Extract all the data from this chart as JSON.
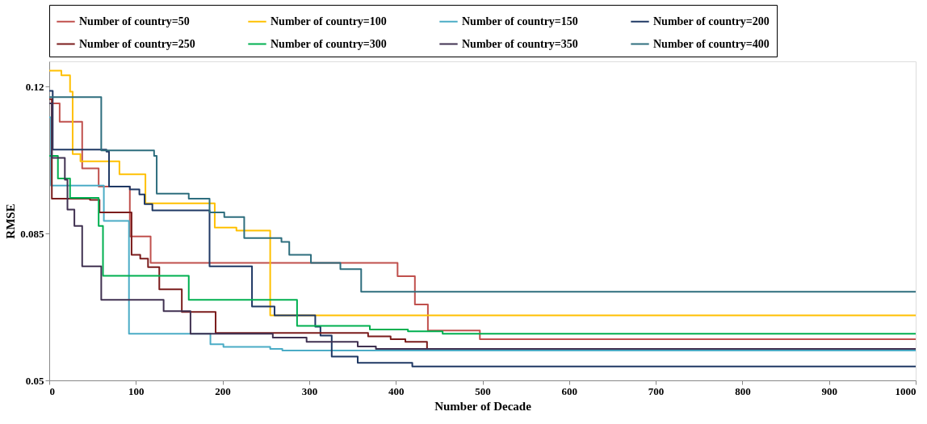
{
  "chart_data": {
    "type": "step",
    "xlabel": "Number of Decade",
    "ylabel": "RMSE",
    "xlim": [
      0,
      1000
    ],
    "xticks": [
      0,
      100,
      200,
      300,
      400,
      500,
      600,
      700,
      800,
      900,
      1000
    ],
    "ylim": [
      0.05,
      0.126
    ],
    "yticks": [
      0.05,
      0.085,
      0.12
    ],
    "grid": false,
    "legend": "top",
    "series": [
      {
        "name": "Number of country=50",
        "color": "#c0504d",
        "x": [
          0,
          12,
          38,
          57,
          93,
          117,
          402,
          422,
          437,
          497,
          1000
        ],
        "values": [
          0.116,
          0.1116,
          0.1005,
          0.0962,
          0.0843,
          0.078,
          0.0748,
          0.0681,
          0.0619,
          0.0598,
          0.0598
        ]
      },
      {
        "name": "Number of country=100",
        "color": "#ffc000",
        "x": [
          0,
          14,
          24,
          27,
          36,
          81,
          111,
          191,
          216,
          255,
          1000
        ],
        "values": [
          0.1238,
          0.1227,
          0.1188,
          0.1039,
          0.1022,
          0.0991,
          0.0922,
          0.0864,
          0.0857,
          0.0655,
          0.0655
        ]
      },
      {
        "name": "Number of country=150",
        "color": "#4bacc6",
        "x": [
          0,
          2,
          63,
          92,
          186,
          201,
          255,
          269,
          1000
        ],
        "values": [
          0.1127,
          0.0964,
          0.088,
          0.0611,
          0.0586,
          0.058,
          0.0575,
          0.0571,
          0.0571
        ]
      },
      {
        "name": "Number of country=200",
        "color": "#1f3864",
        "x": [
          0,
          4,
          66,
          69,
          93,
          104,
          110,
          119,
          185,
          234,
          260,
          307,
          313,
          326,
          356,
          419,
          1000
        ],
        "values": [
          0.119,
          0.105,
          0.1045,
          0.0962,
          0.0955,
          0.0943,
          0.092,
          0.0905,
          0.0772,
          0.0676,
          0.0655,
          0.0628,
          0.0607,
          0.0557,
          0.0542,
          0.0533,
          0.0533
        ]
      },
      {
        "name": "Number of country=250",
        "color": "#7b1c1c",
        "x": [
          0,
          3,
          47,
          58,
          95,
          105,
          114,
          127,
          153,
          192,
          368,
          394,
          411,
          436,
          1000
        ],
        "values": [
          0.117,
          0.0933,
          0.093,
          0.09,
          0.0799,
          0.079,
          0.077,
          0.0717,
          0.0663,
          0.0613,
          0.0605,
          0.0598,
          0.0592,
          0.0575,
          0.0575
        ]
      },
      {
        "name": "Number of country=300",
        "color": "#00b050",
        "x": [
          0,
          10,
          24,
          57,
          62,
          161,
          286,
          370,
          414,
          454,
          1000
        ],
        "values": [
          0.1035,
          0.0981,
          0.0935,
          0.0868,
          0.0749,
          0.0692,
          0.063,
          0.0621,
          0.0617,
          0.0611,
          0.0611
        ]
      },
      {
        "name": "Number of country=350",
        "color": "#403151",
        "x": [
          0,
          3,
          18,
          21,
          29,
          38,
          60,
          132,
          163,
          258,
          297,
          356,
          377,
          1000
        ],
        "values": [
          0.116,
          0.103,
          0.0978,
          0.0907,
          0.0868,
          0.0772,
          0.0692,
          0.0665,
          0.0611,
          0.0602,
          0.0592,
          0.0581,
          0.0575,
          0.0575
        ]
      },
      {
        "name": "Number of country=400",
        "color": "#2e6e7e",
        "x": [
          0,
          60,
          121,
          124,
          161,
          185,
          202,
          225,
          268,
          277,
          302,
          336,
          360,
          1000
        ],
        "values": [
          0.1175,
          0.1048,
          0.1035,
          0.0945,
          0.0933,
          0.09,
          0.0889,
          0.0839,
          0.083,
          0.0799,
          0.078,
          0.0765,
          0.0711,
          0.0711
        ]
      }
    ]
  }
}
